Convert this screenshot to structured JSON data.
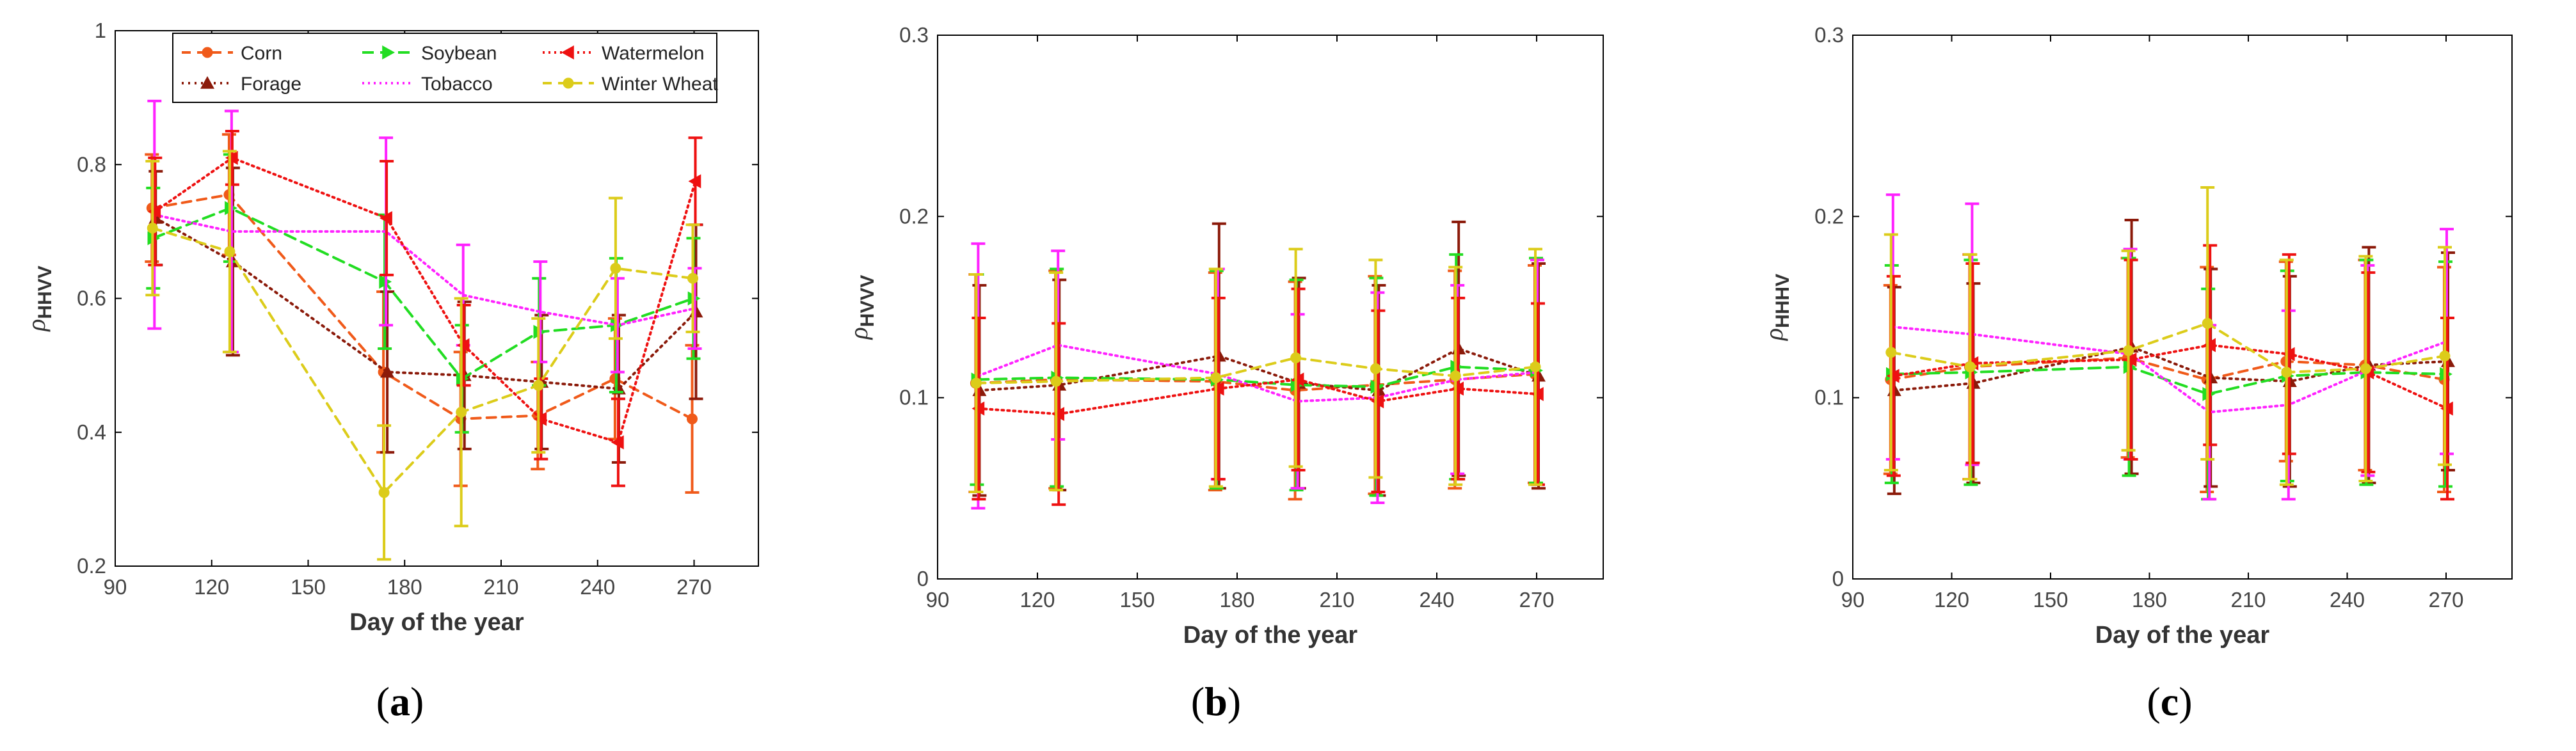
{
  "chart_data": [
    {
      "type": "line",
      "panel_label": "a",
      "xlabel": "Day of the year",
      "ylabel_main": "ρ",
      "ylabel_sub": "HHVV",
      "xlim": [
        90,
        290
      ],
      "ylim": [
        0.2,
        1.0
      ],
      "xticks": [
        90,
        120,
        150,
        180,
        210,
        240,
        270
      ],
      "yticks": [
        0.2,
        0.4,
        0.6,
        0.8,
        1.0
      ],
      "ytick_labels": [
        "0.2",
        "0.4",
        "0.6",
        "0.8",
        "1"
      ],
      "legend_position": "top",
      "x": [
        102,
        126,
        174,
        198,
        222,
        246,
        270
      ],
      "series": [
        {
          "name": "Corn",
          "values": [
            0.735,
            0.755,
            0.49,
            0.42,
            0.425,
            0.48,
            0.42
          ],
          "errors": [
            0.08,
            0.09,
            0.12,
            0.1,
            0.08,
            0.09,
            0.11
          ]
        },
        {
          "name": "Forage",
          "values": [
            0.72,
            0.655,
            0.49,
            0.485,
            0.475,
            0.465,
            0.58
          ],
          "errors": [
            0.07,
            0.14,
            0.12,
            0.11,
            0.1,
            0.11,
            0.13
          ]
        },
        {
          "name": "Soybean",
          "values": [
            0.69,
            0.735,
            0.625,
            0.48,
            0.55,
            0.56,
            0.6
          ],
          "errors": [
            0.075,
            0.08,
            0.1,
            0.08,
            0.08,
            0.1,
            0.09
          ]
        },
        {
          "name": "Tobacco",
          "values": [
            0.725,
            0.7,
            0.7,
            0.605,
            0.58,
            0.56,
            0.585
          ],
          "errors": [
            0.17,
            0.18,
            0.14,
            0.075,
            0.075,
            0.07,
            0.06
          ]
        },
        {
          "name": "Watermelon",
          "values": [
            0.73,
            0.81,
            0.72,
            0.53,
            0.42,
            0.385,
            0.775
          ],
          "errors": [
            0.08,
            0.04,
            0.085,
            0.06,
            0.06,
            0.065,
            0.065
          ]
        },
        {
          "name": "Winter Wheat",
          "values": [
            0.705,
            0.67,
            0.31,
            0.43,
            0.47,
            0.645,
            0.63
          ],
          "errors": [
            0.1,
            0.15,
            0.1,
            0.17,
            0.1,
            0.105,
            0.08
          ]
        }
      ]
    },
    {
      "type": "line",
      "panel_label": "b",
      "xlabel": "Day of the year",
      "ylabel_main": "ρ",
      "ylabel_sub": "HVVV",
      "xlim": [
        90,
        290
      ],
      "ylim": [
        0,
        0.3
      ],
      "xticks": [
        90,
        120,
        150,
        180,
        210,
        240,
        270
      ],
      "yticks": [
        0,
        0.1,
        0.2,
        0.3
      ],
      "ytick_labels": [
        "0",
        "0.1",
        "0.2",
        "0.3"
      ],
      "x": [
        102,
        126,
        174,
        198,
        222,
        246,
        270
      ],
      "series": [
        {
          "name": "Corn",
          "values": [
            0.108,
            0.11,
            0.109,
            0.104,
            0.107,
            0.11,
            0.113
          ],
          "errors": [
            0.06,
            0.06,
            0.06,
            0.06,
            0.06,
            0.06,
            0.06
          ]
        },
        {
          "name": "Forage",
          "values": [
            0.104,
            0.107,
            0.123,
            0.108,
            0.104,
            0.127,
            0.112
          ],
          "errors": [
            0.058,
            0.058,
            0.073,
            0.058,
            0.058,
            0.07,
            0.062
          ]
        },
        {
          "name": "Soybean",
          "values": [
            0.11,
            0.111,
            0.11,
            0.107,
            0.106,
            0.117,
            0.115
          ],
          "errors": [
            0.058,
            0.06,
            0.06,
            0.058,
            0.06,
            0.062,
            0.062
          ]
        },
        {
          "name": "Tobacco",
          "values": [
            0.112,
            0.129,
            0.113,
            0.098,
            0.1,
            0.11,
            0.114
          ],
          "errors": [
            0.073,
            0.052,
            0.058,
            0.048,
            0.058,
            0.052,
            0.062
          ]
        },
        {
          "name": "Watermelon",
          "values": [
            0.094,
            0.091,
            0.105,
            0.11,
            0.098,
            0.105,
            0.102
          ],
          "errors": [
            0.05,
            0.05,
            0.05,
            0.05,
            0.05,
            0.05,
            0.05
          ]
        },
        {
          "name": "Winter Wheat",
          "values": [
            0.108,
            0.109,
            0.111,
            0.122,
            0.116,
            0.112,
            0.117
          ],
          "errors": [
            0.06,
            0.06,
            0.06,
            0.06,
            0.06,
            0.06,
            0.065
          ]
        }
      ]
    },
    {
      "type": "line",
      "panel_label": "c",
      "xlabel": "Day of the year",
      "ylabel_main": "ρ",
      "ylabel_sub": "HHHV",
      "xlim": [
        90,
        290
      ],
      "ylim": [
        0,
        0.3
      ],
      "xticks": [
        90,
        120,
        150,
        180,
        210,
        240,
        270
      ],
      "yticks": [
        0,
        0.1,
        0.2,
        0.3
      ],
      "ytick_labels": [
        "0",
        "0.1",
        "0.2",
        "0.3"
      ],
      "x": [
        102,
        126,
        174,
        198,
        222,
        246,
        270
      ],
      "series": [
        {
          "name": "Corn",
          "values": [
            0.11,
            0.117,
            0.122,
            0.11,
            0.12,
            0.118,
            0.11
          ],
          "errors": [
            0.052,
            0.062,
            0.055,
            0.062,
            0.055,
            0.058,
            0.062
          ]
        },
        {
          "name": "Forage",
          "values": [
            0.104,
            0.108,
            0.128,
            0.111,
            0.109,
            0.118,
            0.12
          ],
          "errors": [
            0.057,
            0.055,
            0.07,
            0.06,
            0.058,
            0.065,
            0.06
          ]
        },
        {
          "name": "Soybean",
          "values": [
            0.113,
            0.114,
            0.117,
            0.102,
            0.112,
            0.114,
            0.113
          ],
          "errors": [
            0.06,
            0.062,
            0.06,
            0.058,
            0.058,
            0.062,
            0.062
          ]
        },
        {
          "name": "Tobacco",
          "values": [
            0.139,
            0.135,
            0.124,
            0.092,
            0.096,
            0.115,
            0.131
          ],
          "errors": [
            0.073,
            0.072,
            0.058,
            0.048,
            0.052,
            0.058,
            0.062
          ]
        },
        {
          "name": "Watermelon",
          "values": [
            0.112,
            0.119,
            0.121,
            0.129,
            0.124,
            0.114,
            0.094
          ],
          "errors": [
            0.055,
            0.055,
            0.055,
            0.055,
            0.055,
            0.055,
            0.05
          ]
        },
        {
          "name": "Winter Wheat",
          "values": [
            0.125,
            0.117,
            0.126,
            0.141,
            0.114,
            0.116,
            0.123
          ],
          "errors": [
            0.065,
            0.062,
            0.055,
            0.075,
            0.062,
            0.062,
            0.06
          ]
        }
      ]
    }
  ],
  "legend_entries": [
    "Corn",
    "Soybean",
    "Watermelon",
    "Forage",
    "Tobacco",
    "Winter Wheat"
  ],
  "series_styles": {
    "Corn": {
      "color": "#f05a1a",
      "dash": "14 10",
      "marker": "circle"
    },
    "Forage": {
      "color": "#8b1a0a",
      "dash": "3 7",
      "marker": "triangle-up"
    },
    "Soybean": {
      "color": "#22dd22",
      "dash": "18 10",
      "marker": "triangle-right"
    },
    "Tobacco": {
      "color": "#ff22ff",
      "dash": "3 6",
      "marker": "none"
    },
    "Watermelon": {
      "color": "#ee1111",
      "dash": "3 6",
      "marker": "triangle-left"
    },
    "Winter Wheat": {
      "color": "#dccc1a",
      "dash": "14 10",
      "marker": "circle"
    }
  },
  "colors": {
    "axis": "#000000",
    "tick_text": "#444444",
    "background": "#ffffff"
  }
}
